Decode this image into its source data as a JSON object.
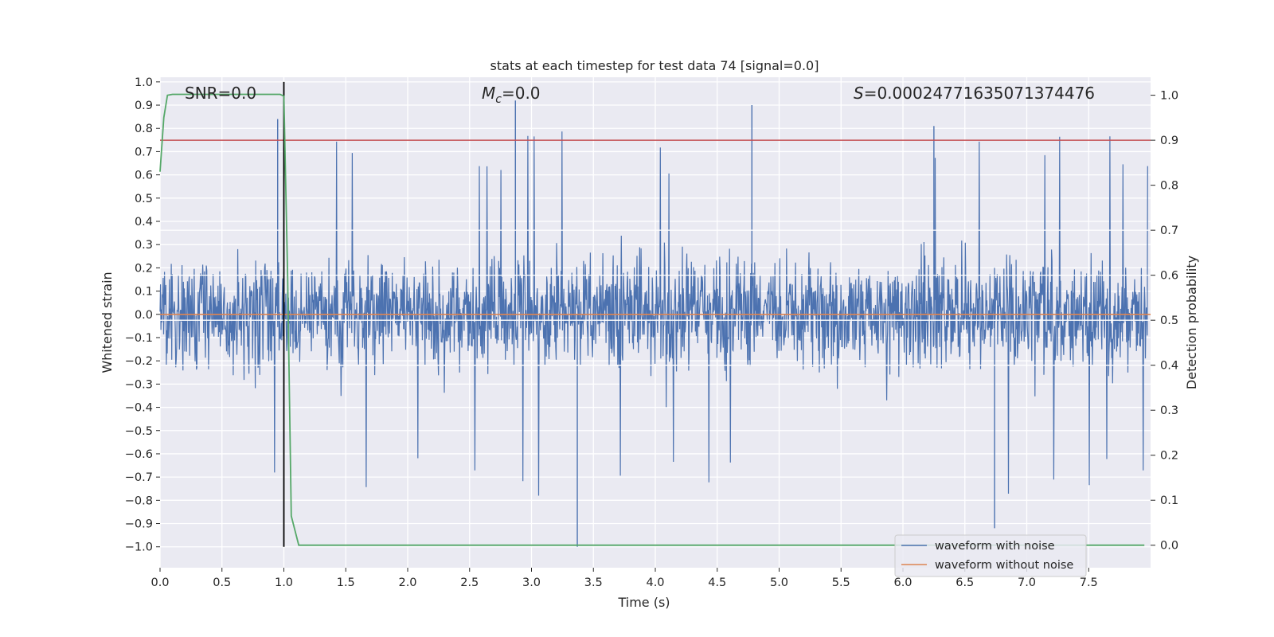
{
  "chart_data": {
    "type": "line",
    "title": "stats at each timestep for test data 74 [signal=0.0]",
    "xlabel": "Time (s)",
    "ylabel": "Whitened strain",
    "y2label": "Detection probability",
    "xlim": [
      0.0,
      8.0
    ],
    "ylim": [
      -1.09,
      1.02
    ],
    "y2lim": [
      -0.05,
      1.04
    ],
    "x_ticks": [
      0.0,
      0.5,
      1.0,
      1.5,
      2.0,
      2.5,
      3.0,
      3.5,
      4.0,
      4.5,
      5.0,
      5.5,
      6.0,
      6.5,
      7.0,
      7.5
    ],
    "x_tick_labels": [
      "0.0",
      "0.5",
      "1.0",
      "1.5",
      "2.0",
      "2.5",
      "3.0",
      "3.5",
      "4.0",
      "4.5",
      "5.0",
      "5.5",
      "6.0",
      "6.5",
      "7.0",
      "7.5"
    ],
    "y_ticks": [
      1.0,
      0.9,
      0.8,
      0.7,
      0.6,
      0.5,
      0.4,
      0.3,
      0.2,
      0.1,
      0.0,
      -0.1,
      -0.2,
      -0.3,
      -0.4,
      -0.5,
      -0.6,
      -0.7,
      -0.8,
      -0.9,
      -1.0
    ],
    "y_tick_labels": [
      "1.0",
      "0.9",
      "0.8",
      "0.7",
      "0.6",
      "0.5",
      "0.4",
      "0.3",
      "0.2",
      "0.1",
      "0.0",
      "−0.1",
      "−0.2",
      "−0.3",
      "−0.4",
      "−0.5",
      "−0.6",
      "−0.7",
      "−0.8",
      "−0.9",
      "−1.0"
    ],
    "y2_ticks": [
      1.0,
      0.9,
      0.8,
      0.7,
      0.6,
      0.5,
      0.4,
      0.3,
      0.2,
      0.1,
      0.0
    ],
    "y2_tick_labels": [
      "1.0",
      "0.9",
      "0.8",
      "0.7",
      "0.6",
      "0.5",
      "0.4",
      "0.3",
      "0.2",
      "0.1",
      "0.0"
    ],
    "annotations": {
      "snr": "SNR=0.0",
      "mc_symbol": "M",
      "mc_sub": "c",
      "mc_value": "=0.0",
      "s_symbol": "S",
      "s_value": "=0.00024771635071374476"
    },
    "noise_stats": {
      "typical_abs_amplitude": 0.3,
      "max_value": 0.92,
      "min_value": -1.0
    },
    "series": [
      {
        "name": "waveform with noise",
        "axis": "left",
        "color": "#4c72b0",
        "style": "noisy-waveform"
      },
      {
        "name": "waveform without noise",
        "axis": "left",
        "color": "#dd8452",
        "x": [
          0.0,
          8.0
        ],
        "y": [
          0.0,
          0.0
        ]
      },
      {
        "name": "detection probability",
        "axis": "right",
        "color": "#55a868",
        "x": [
          0.0,
          0.03,
          0.06,
          0.1,
          0.15,
          0.3,
          0.5,
          0.8,
          0.97,
          1.0,
          1.03,
          1.06,
          1.12,
          7.95
        ],
        "y": [
          0.83,
          0.95,
          1.0,
          1.002,
          1.002,
          1.002,
          1.002,
          1.002,
          1.002,
          0.998,
          0.6,
          0.065,
          0.0,
          0.0
        ]
      },
      {
        "name": "threshold",
        "axis": "right",
        "color": "#c44e52",
        "x": [
          0.0,
          8.0
        ],
        "y": [
          0.9,
          0.9
        ]
      },
      {
        "name": "signal marker",
        "axis": "left",
        "color": "#000000",
        "x": [
          1.0,
          1.0
        ],
        "y": [
          -1.0,
          1.0
        ]
      }
    ],
    "legend": {
      "location": "lower-right",
      "entries": [
        {
          "label": "waveform with noise",
          "color": "#4c72b0"
        },
        {
          "label": "waveform without noise",
          "color": "#dd8452"
        }
      ]
    },
    "grid": true
  }
}
